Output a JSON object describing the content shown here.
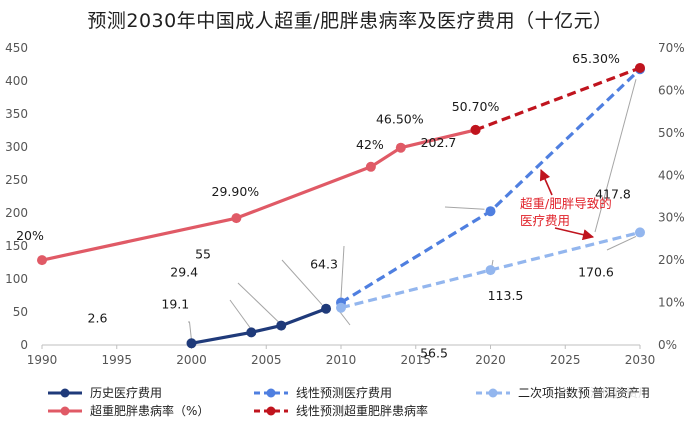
{
  "title": "预测2030年中国成人超重/肥胖患病率及医疗费用（十亿元）",
  "watermark": "普洱资产",
  "chart_data": {
    "type": "line",
    "title": "预测2030年中国成人超重/肥胖患病率及医疗费用（十亿元）",
    "x_ticks": [
      1990,
      1995,
      2000,
      2005,
      2010,
      2015,
      2020,
      2025,
      2030
    ],
    "xlim": [
      1990,
      2030
    ],
    "y_left_ticks": [
      0,
      50,
      100,
      150,
      200,
      250,
      300,
      350,
      400,
      450
    ],
    "ylim_left": [
      0,
      450
    ],
    "y_right_ticks": [
      "0%",
      "10%",
      "20%",
      "30%",
      "40%",
      "50%",
      "60%",
      "70%"
    ],
    "ylim_right": [
      0,
      70
    ],
    "grid": false,
    "legend_position": "bottom",
    "colors": {
      "history_cost": "#1f3a7a",
      "linear_cost": "#4f7fe0",
      "quadratic_cost": "#93b6ee",
      "prevalence": "#e05a66",
      "linear_prevalence": "#c0141e"
    },
    "series": [
      {
        "key": "history_cost",
        "name": "历史医疗费用",
        "axis": "left",
        "style": "solid",
        "points": [
          [
            2000,
            2.6
          ],
          [
            2004,
            19.1
          ],
          [
            2006,
            29.4
          ],
          [
            2009,
            55
          ]
        ]
      },
      {
        "key": "linear_cost",
        "name": "线性预测医疗费用",
        "axis": "left",
        "style": "dashed",
        "points": [
          [
            2010,
            64.3
          ],
          [
            2020,
            202.7
          ],
          [
            2030,
            417.8
          ]
        ]
      },
      {
        "key": "quadratic_cost",
        "name": "二次项指数预测医疗费用",
        "axis": "left",
        "style": "dashed",
        "points": [
          [
            2010,
            56.5
          ],
          [
            2020,
            113.5
          ],
          [
            2030,
            170.6
          ]
        ]
      },
      {
        "key": "prevalence",
        "name": "超重肥胖患病率（%）",
        "axis": "right",
        "style": "solid",
        "points": [
          [
            1990,
            20
          ],
          [
            2003,
            29.9
          ],
          [
            2012,
            42
          ],
          [
            2014,
            46.5
          ],
          [
            2019,
            50.7
          ]
        ]
      },
      {
        "key": "linear_prevalence",
        "name": "线性预测超重肥胖患病率",
        "axis": "right",
        "style": "dashed",
        "points": [
          [
            2019,
            50.7
          ],
          [
            2030,
            65.3
          ]
        ]
      }
    ],
    "data_labels": [
      {
        "text": "20%",
        "x": 1990,
        "y": 20,
        "axis": "right"
      },
      {
        "text": "29.90%",
        "x": 2003,
        "y": 29.9,
        "axis": "right"
      },
      {
        "text": "42%",
        "x": 2012,
        "y": 42,
        "axis": "right"
      },
      {
        "text": "46.50%",
        "x": 2014,
        "y": 46.5,
        "axis": "right"
      },
      {
        "text": "50.70%",
        "x": 2019,
        "y": 50.7,
        "axis": "right"
      },
      {
        "text": "65.30%",
        "x": 2030,
        "y": 65.3,
        "axis": "right"
      },
      {
        "text": "2.6",
        "x": 2000,
        "y": 2.6,
        "axis": "left"
      },
      {
        "text": "19.1",
        "x": 2004,
        "y": 19.1,
        "axis": "left"
      },
      {
        "text": "29.4",
        "x": 2006,
        "y": 29.4,
        "axis": "left"
      },
      {
        "text": "55",
        "x": 2009,
        "y": 55,
        "axis": "left"
      },
      {
        "text": "64.3",
        "x": 2010,
        "y": 64.3,
        "axis": "left"
      },
      {
        "text": "56.5",
        "x": 2010,
        "y": 56.5,
        "axis": "left"
      },
      {
        "text": "202.7",
        "x": 2020,
        "y": 202.7,
        "axis": "left"
      },
      {
        "text": "113.5",
        "x": 2020,
        "y": 113.5,
        "axis": "left"
      },
      {
        "text": "417.8",
        "x": 2030,
        "y": 417.8,
        "axis": "left"
      },
      {
        "text": "170.6",
        "x": 2030,
        "y": 170.6,
        "axis": "left"
      }
    ],
    "annotation": {
      "lines": [
        "超重/肥胖导致的",
        "医疗费用"
      ]
    }
  }
}
